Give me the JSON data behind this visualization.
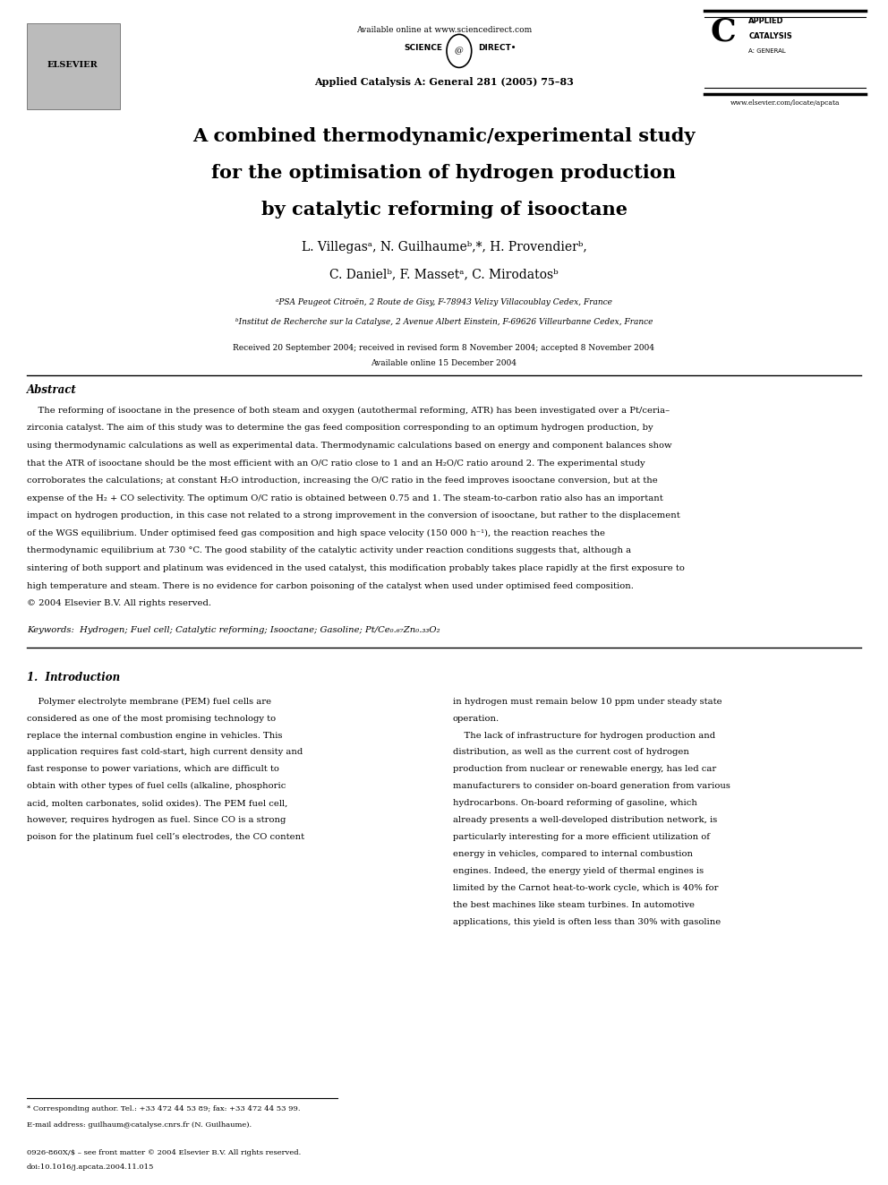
{
  "background_color": "#ffffff",
  "page_width": 9.92,
  "page_height": 13.23,
  "header": {
    "available_online": "Available online at www.sciencedirect.com",
    "journal_info": "Applied Catalysis A: General 281 (2005) 75–83",
    "website": "www.elsevier.com/locate/apcata"
  },
  "title_lines": [
    "A combined thermodynamic/experimental study",
    "for the optimisation of hydrogen production",
    "by catalytic reforming of isooctane"
  ],
  "authors_line1": "L. Villegasᵃ, N. Guilhaumeᵇ,*, H. Provendierᵇ,",
  "authors_line2": "C. Danielᵇ, F. Massetᵃ, C. Mirodatosᵇ",
  "affil_a": "ᵃPSA Peugeot Citroën, 2 Route de Gisy, F-78943 Velizy Villacoublay Cedex, France",
  "affil_b": "ᵇInstitut de Recherche sur la Catalyse, 2 Avenue Albert Einstein, F-69626 Villeurbanne Cedex, France",
  "received": "Received 20 September 2004; received in revised form 8 November 2004; accepted 8 November 2004",
  "available": "Available online 15 December 2004",
  "abstract_title": "Abstract",
  "keywords": "Keywords:  Hydrogen; Fuel cell; Catalytic reforming; Isooctane; Gasoline; Pt/Ce₀.₆₇Zn₀.₃₃O₂",
  "section1_title": "1.  Introduction",
  "footnote_corresponding": "* Corresponding author. Tel.: +33 472 44 53 89; fax: +33 472 44 53 99.",
  "footnote_email": "E-mail address: guilhaum@catalyse.cnrs.fr (N. Guilhaume).",
  "footer_issn": "0926-860X/$ – see front matter © 2004 Elsevier B.V. All rights reserved.",
  "footer_doi": "doi:10.1016/j.apcata.2004.11.015",
  "abstract_lines": [
    "    The reforming of isooctane in the presence of both steam and oxygen (autothermal reforming, ATR) has been investigated over a Pt/ceria–",
    "zirconia catalyst. The aim of this study was to determine the gas feed composition corresponding to an optimum hydrogen production, by",
    "using thermodynamic calculations as well as experimental data. Thermodynamic calculations based on energy and component balances show",
    "that the ATR of isooctane should be the most efficient with an O/C ratio close to 1 and an H₂O/C ratio around 2. The experimental study",
    "corroborates the calculations; at constant H₂O introduction, increasing the O/C ratio in the feed improves isooctane conversion, but at the",
    "expense of the H₂ + CO selectivity. The optimum O/C ratio is obtained between 0.75 and 1. The steam-to-carbon ratio also has an important",
    "impact on hydrogen production, in this case not related to a strong improvement in the conversion of isooctane, but rather to the displacement",
    "of the WGS equilibrium. Under optimised feed gas composition and high space velocity (150 000 h⁻¹), the reaction reaches the",
    "thermodynamic equilibrium at 730 °C. The good stability of the catalytic activity under reaction conditions suggests that, although a",
    "sintering of both support and platinum was evidenced in the used catalyst, this modification probably takes place rapidly at the first exposure to",
    "high temperature and steam. There is no evidence for carbon poisoning of the catalyst when used under optimised feed composition.",
    "© 2004 Elsevier B.V. All rights reserved."
  ],
  "col1_lines": [
    "    Polymer electrolyte membrane (PEM) fuel cells are",
    "considered as one of the most promising technology to",
    "replace the internal combustion engine in vehicles. This",
    "application requires fast cold-start, high current density and",
    "fast response to power variations, which are difficult to",
    "obtain with other types of fuel cells (alkaline, phosphoric",
    "acid, molten carbonates, solid oxides). The PEM fuel cell,",
    "however, requires hydrogen as fuel. Since CO is a strong",
    "poison for the platinum fuel cell’s electrodes, the CO content"
  ],
  "col2_lines": [
    "in hydrogen must remain below 10 ppm under steady state",
    "operation.",
    "    The lack of infrastructure for hydrogen production and",
    "distribution, as well as the current cost of hydrogen",
    "production from nuclear or renewable energy, has led car",
    "manufacturers to consider on-board generation from various",
    "hydrocarbons. On-board reforming of gasoline, which",
    "already presents a well-developed distribution network, is",
    "particularly interesting for a more efficient utilization of",
    "energy in vehicles, compared to internal combustion",
    "engines. Indeed, the energy yield of thermal engines is",
    "limited by the Carnot heat-to-work cycle, which is 40% for",
    "the best machines like steam turbines. In automotive",
    "applications, this yield is often less than 30% with gasoline"
  ]
}
